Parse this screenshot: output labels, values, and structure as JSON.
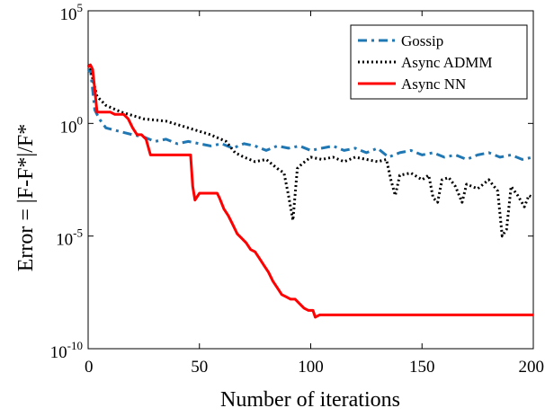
{
  "chart_data": {
    "type": "line",
    "title": "",
    "xlabel": "Number of iterations",
    "ylabel": "Error = |F-F*|/F*",
    "xlim": [
      0,
      200
    ],
    "ylim_exponent": [
      -10,
      5
    ],
    "y_scale": "log",
    "grid": false,
    "legend_position": "top-right",
    "x_ticks": [
      0,
      50,
      100,
      150,
      200
    ],
    "y_tick_labels": [
      {
        "exp": -10,
        "base": "10",
        "sup": "-10"
      },
      {
        "exp": -5,
        "base": "10",
        "sup": "-5"
      },
      {
        "exp": 0,
        "base": "10",
        "sup": "0"
      },
      {
        "exp": 5,
        "base": "10",
        "sup": "5"
      }
    ],
    "series": [
      {
        "name": "Gossip",
        "color": "#1f77b4",
        "style": "dashdot",
        "points": [
          [
            0,
            2.3
          ],
          [
            1,
            2.4
          ],
          [
            2,
            1.5
          ],
          [
            3,
            0.6
          ],
          [
            5,
            0.2
          ],
          [
            8,
            -0.2
          ],
          [
            12,
            -0.3
          ],
          [
            16,
            -0.4
          ],
          [
            20,
            -0.5
          ],
          [
            25,
            -0.6
          ],
          [
            30,
            -0.8
          ],
          [
            35,
            -0.7
          ],
          [
            40,
            -0.9
          ],
          [
            45,
            -0.8
          ],
          [
            50,
            -0.9
          ],
          [
            55,
            -1.0
          ],
          [
            60,
            -0.9
          ],
          [
            65,
            -1.1
          ],
          [
            70,
            -0.9
          ],
          [
            75,
            -1.0
          ],
          [
            80,
            -1.2
          ],
          [
            85,
            -1.0
          ],
          [
            90,
            -1.1
          ],
          [
            95,
            -1.0
          ],
          [
            100,
            -1.2
          ],
          [
            105,
            -1.1
          ],
          [
            110,
            -1.0
          ],
          [
            115,
            -1.2
          ],
          [
            120,
            -1.1
          ],
          [
            125,
            -1.3
          ],
          [
            130,
            -1.1
          ],
          [
            135,
            -1.5
          ],
          [
            140,
            -1.3
          ],
          [
            145,
            -1.2
          ],
          [
            150,
            -1.4
          ],
          [
            155,
            -1.3
          ],
          [
            160,
            -1.5
          ],
          [
            165,
            -1.4
          ],
          [
            170,
            -1.6
          ],
          [
            175,
            -1.4
          ],
          [
            180,
            -1.3
          ],
          [
            185,
            -1.5
          ],
          [
            190,
            -1.4
          ],
          [
            195,
            -1.6
          ],
          [
            200,
            -1.5
          ]
        ]
      },
      {
        "name": "Async ADMM",
        "color": "#000000",
        "style": "dotted",
        "points": [
          [
            0,
            2.6
          ],
          [
            1,
            2.5
          ],
          [
            2,
            2.0
          ],
          [
            4,
            1.2
          ],
          [
            8,
            0.8
          ],
          [
            15,
            0.5
          ],
          [
            25,
            0.2
          ],
          [
            35,
            0.1
          ],
          [
            45,
            -0.2
          ],
          [
            55,
            -0.5
          ],
          [
            62,
            -0.8
          ],
          [
            66,
            -1.3
          ],
          [
            70,
            -1.5
          ],
          [
            75,
            -1.7
          ],
          [
            80,
            -1.6
          ],
          [
            85,
            -2.0
          ],
          [
            88,
            -2.2
          ],
          [
            90,
            -3.2
          ],
          [
            92,
            -4.3
          ],
          [
            94,
            -2.0
          ],
          [
            96,
            -1.8
          ],
          [
            100,
            -1.5
          ],
          [
            105,
            -1.6
          ],
          [
            110,
            -1.5
          ],
          [
            115,
            -1.7
          ],
          [
            120,
            -1.5
          ],
          [
            125,
            -1.6
          ],
          [
            130,
            -1.7
          ],
          [
            134,
            -1.6
          ],
          [
            136,
            -2.5
          ],
          [
            138,
            -3.2
          ],
          [
            140,
            -2.3
          ],
          [
            145,
            -2.2
          ],
          [
            150,
            -2.5
          ],
          [
            153,
            -2.3
          ],
          [
            155,
            -3.3
          ],
          [
            157,
            -3.5
          ],
          [
            159,
            -2.5
          ],
          [
            162,
            -2.4
          ],
          [
            165,
            -2.8
          ],
          [
            168,
            -3.5
          ],
          [
            170,
            -2.7
          ],
          [
            175,
            -2.9
          ],
          [
            180,
            -2.5
          ],
          [
            184,
            -3.0
          ],
          [
            186,
            -5.0
          ],
          [
            188,
            -4.7
          ],
          [
            190,
            -2.8
          ],
          [
            193,
            -3.2
          ],
          [
            196,
            -3.7
          ],
          [
            198,
            -3.2
          ],
          [
            200,
            -3.3
          ]
        ]
      },
      {
        "name": "Async NN",
        "color": "#ff0000",
        "style": "solid",
        "points": [
          [
            0,
            2.5
          ],
          [
            1,
            2.6
          ],
          [
            2,
            2.4
          ],
          [
            3,
            1.5
          ],
          [
            4,
            0.5
          ],
          [
            6,
            0.5
          ],
          [
            8,
            0.5
          ],
          [
            10,
            0.5
          ],
          [
            12,
            0.4
          ],
          [
            14,
            0.4
          ],
          [
            16,
            0.4
          ],
          [
            18,
            0.2
          ],
          [
            20,
            -0.2
          ],
          [
            22,
            -0.5
          ],
          [
            24,
            -0.5
          ],
          [
            26,
            -0.7
          ],
          [
            28,
            -1.4
          ],
          [
            46,
            -1.4
          ],
          [
            47,
            -2.8
          ],
          [
            48,
            -3.4
          ],
          [
            50,
            -3.1
          ],
          [
            58,
            -3.1
          ],
          [
            59,
            -3.3
          ],
          [
            61,
            -3.8
          ],
          [
            63,
            -4.1
          ],
          [
            65,
            -4.5
          ],
          [
            67,
            -4.9
          ],
          [
            69,
            -5.1
          ],
          [
            71,
            -5.3
          ],
          [
            73,
            -5.6
          ],
          [
            75,
            -5.7
          ],
          [
            77,
            -6.0
          ],
          [
            79,
            -6.3
          ],
          [
            81,
            -6.6
          ],
          [
            83,
            -7.0
          ],
          [
            85,
            -7.3
          ],
          [
            87,
            -7.6
          ],
          [
            89,
            -7.7
          ],
          [
            91,
            -7.8
          ],
          [
            93,
            -7.8
          ],
          [
            95,
            -8.0
          ],
          [
            97,
            -8.2
          ],
          [
            99,
            -8.3
          ],
          [
            101,
            -8.3
          ],
          [
            102,
            -8.6
          ],
          [
            104,
            -8.5
          ],
          [
            200,
            -8.5
          ]
        ]
      }
    ]
  }
}
